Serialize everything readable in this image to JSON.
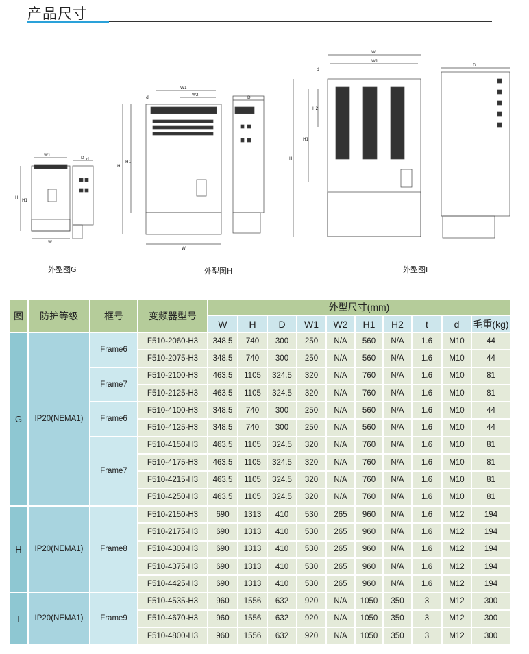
{
  "section_title": "产品尺寸",
  "figures": [
    {
      "caption": "外型图G",
      "labels": [
        "W1",
        "d",
        "H",
        "H1",
        "W",
        "D"
      ]
    },
    {
      "caption": "外型图H",
      "labels": [
        "W1",
        "W2",
        "d",
        "H",
        "H1",
        "W",
        "D"
      ]
    },
    {
      "caption": "外型图I",
      "labels": [
        "W",
        "W1",
        "d",
        "H2",
        "H1",
        "H",
        "D"
      ]
    }
  ],
  "table": {
    "headers": {
      "fig": "图",
      "protection": "防护等级",
      "frame": "框号",
      "model": "变频器型号",
      "dims": "外型尺寸(mm)"
    },
    "dim_columns": [
      "W",
      "H",
      "D",
      "W1",
      "W2",
      "H1",
      "H2",
      "t",
      "d",
      "毛重(kg)"
    ],
    "groups": [
      {
        "fig": "G",
        "protection": "IP20(NEMA1)",
        "frames": [
          {
            "frame": "Frame6",
            "rows": [
              [
                "F510-2060-H3",
                "348.5",
                "740",
                "300",
                "250",
                "N/A",
                "560",
                "N/A",
                "1.6",
                "M10",
                "44"
              ],
              [
                "F510-2075-H3",
                "348.5",
                "740",
                "300",
                "250",
                "N/A",
                "560",
                "N/A",
                "1.6",
                "M10",
                "44"
              ]
            ]
          },
          {
            "frame": "Frame7",
            "rows": [
              [
                "F510-2100-H3",
                "463.5",
                "1105",
                "324.5",
                "320",
                "N/A",
                "760",
                "N/A",
                "1.6",
                "M10",
                "81"
              ],
              [
                "F510-2125-H3",
                "463.5",
                "1105",
                "324.5",
                "320",
                "N/A",
                "760",
                "N/A",
                "1.6",
                "M10",
                "81"
              ]
            ]
          },
          {
            "frame": "Frame6",
            "rows": [
              [
                "F510-4100-H3",
                "348.5",
                "740",
                "300",
                "250",
                "N/A",
                "560",
                "N/A",
                "1.6",
                "M10",
                "44"
              ],
              [
                "F510-4125-H3",
                "348.5",
                "740",
                "300",
                "250",
                "N/A",
                "560",
                "N/A",
                "1.6",
                "M10",
                "44"
              ]
            ]
          },
          {
            "frame": "Frame7",
            "rows": [
              [
                "F510-4150-H3",
                "463.5",
                "1105",
                "324.5",
                "320",
                "N/A",
                "760",
                "N/A",
                "1.6",
                "M10",
                "81"
              ],
              [
                "F510-4175-H3",
                "463.5",
                "1105",
                "324.5",
                "320",
                "N/A",
                "760",
                "N/A",
                "1.6",
                "M10",
                "81"
              ],
              [
                "F510-4215-H3",
                "463.5",
                "1105",
                "324.5",
                "320",
                "N/A",
                "760",
                "N/A",
                "1.6",
                "M10",
                "81"
              ],
              [
                "F510-4250-H3",
                "463.5",
                "1105",
                "324.5",
                "320",
                "N/A",
                "760",
                "N/A",
                "1.6",
                "M10",
                "81"
              ]
            ]
          }
        ]
      },
      {
        "fig": "H",
        "protection": "IP20(NEMA1)",
        "frames": [
          {
            "frame": "Frame8",
            "rows": [
              [
                "F510-2150-H3",
                "690",
                "1313",
                "410",
                "530",
                "265",
                "960",
                "N/A",
                "1.6",
                "M12",
                "194"
              ],
              [
                "F510-2175-H3",
                "690",
                "1313",
                "410",
                "530",
                "265",
                "960",
                "N/A",
                "1.6",
                "M12",
                "194"
              ],
              [
                "F510-4300-H3",
                "690",
                "1313",
                "410",
                "530",
                "265",
                "960",
                "N/A",
                "1.6",
                "M12",
                "194"
              ],
              [
                "F510-4375-H3",
                "690",
                "1313",
                "410",
                "530",
                "265",
                "960",
                "N/A",
                "1.6",
                "M12",
                "194"
              ],
              [
                "F510-4425-H3",
                "690",
                "1313",
                "410",
                "530",
                "265",
                "960",
                "N/A",
                "1.6",
                "M12",
                "194"
              ]
            ]
          }
        ]
      },
      {
        "fig": "I",
        "protection": "IP20(NEMA1)",
        "frames": [
          {
            "frame": "Frame9",
            "rows": [
              [
                "F510-4535-H3",
                "960",
                "1556",
                "632",
                "920",
                "N/A",
                "1050",
                "350",
                "3",
                "M12",
                "300"
              ],
              [
                "F510-4670-H3",
                "960",
                "1556",
                "632",
                "920",
                "N/A",
                "1050",
                "350",
                "3",
                "M12",
                "300"
              ],
              [
                "F510-4800-H3",
                "960",
                "1556",
                "632",
                "920",
                "N/A",
                "1050",
                "350",
                "3",
                "M12",
                "300"
              ]
            ]
          }
        ]
      }
    ]
  }
}
